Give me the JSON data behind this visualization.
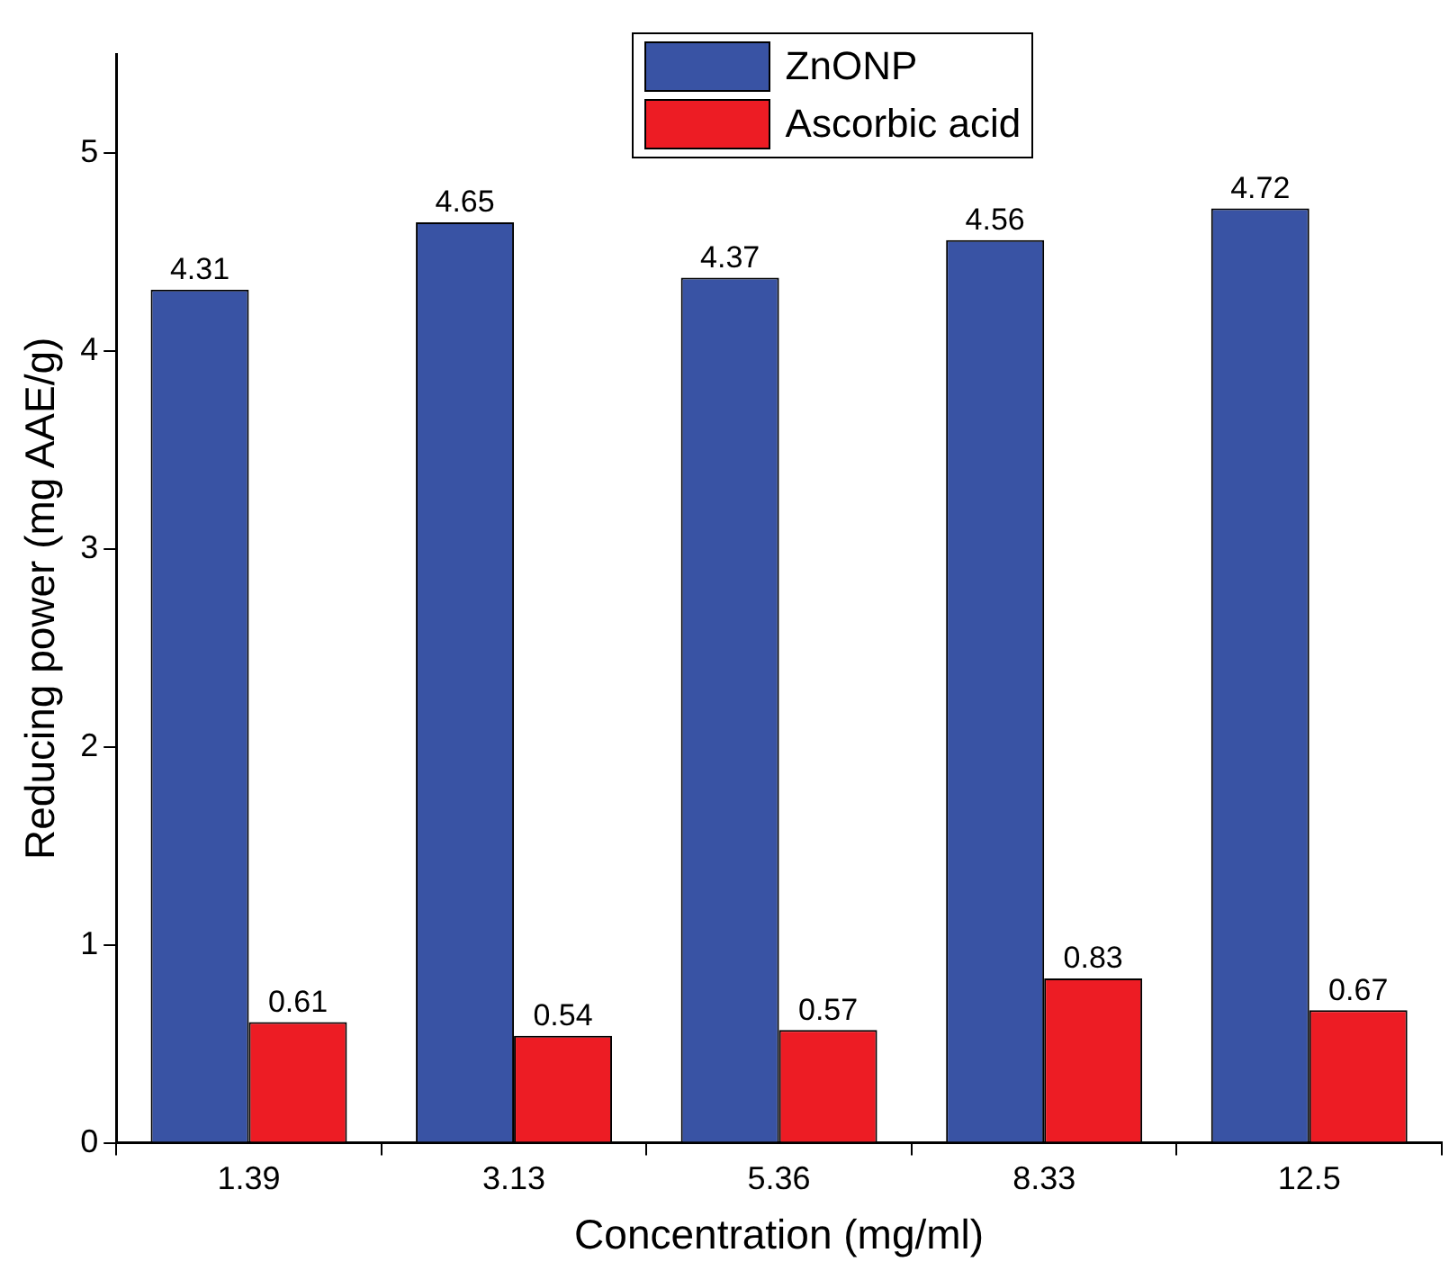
{
  "chart_data": {
    "type": "bar",
    "xlabel": "Concentration (mg/ml)",
    "ylabel": "Reducing power (mg AAE/g)",
    "categories": [
      "1.39",
      "3.13",
      "5.36",
      "8.33",
      "12.5"
    ],
    "series": [
      {
        "name": "ZnONP",
        "color": "#3953a4",
        "values": [
          4.31,
          4.65,
          4.37,
          4.56,
          4.72
        ]
      },
      {
        "name": "Ascorbic acid",
        "color": "#ed1c24",
        "values": [
          0.61,
          0.54,
          0.57,
          0.83,
          0.67
        ]
      }
    ],
    "ylim": [
      0,
      5.5
    ],
    "yticks": [
      0,
      1,
      2,
      3,
      4,
      5
    ],
    "grid": false,
    "legend": "top",
    "data_labels": true
  }
}
